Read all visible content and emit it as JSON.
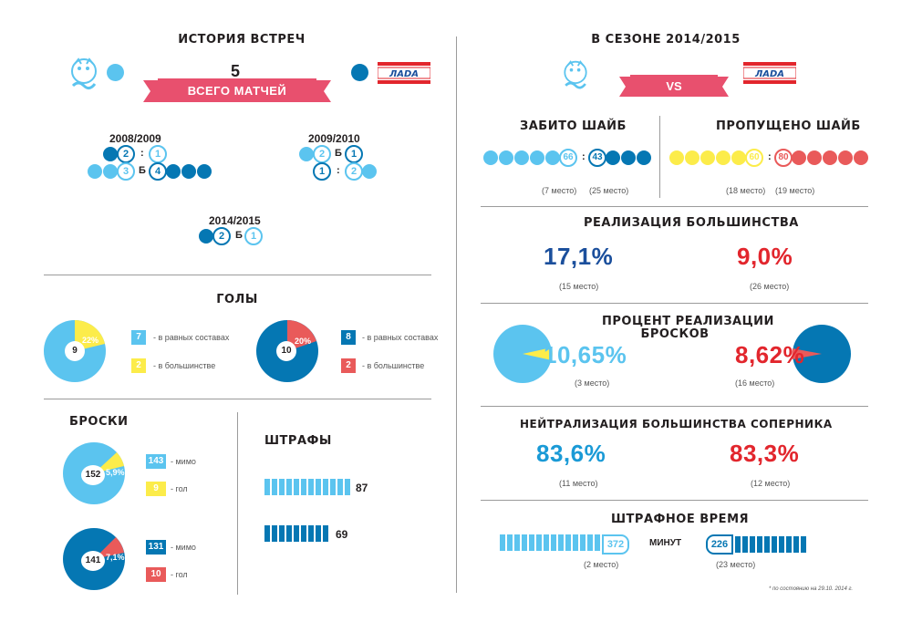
{
  "left": {
    "history_title": "ИСТОРИЯ ВСТРЕЧ",
    "total_games": "5",
    "total_games_label": "ВСЕГО МАТЧЕЙ",
    "seasons": [
      {
        "name": "2008/2009",
        "row1_left": "2",
        "row1_sep": ":",
        "row1_right": "1",
        "row2_left": "3",
        "row2_sep": "Б",
        "row2_right": "4"
      },
      {
        "name": "2009/2010",
        "row1_left": "2",
        "row1_sep": "Б",
        "row1_right": "1",
        "row2_left": "1",
        "row2_sep": ":",
        "row2_right": "2"
      },
      {
        "name": "2014/2015",
        "row1_left": "2",
        "row1_sep": "Б",
        "row1_right": "1"
      }
    ],
    "goals_title": "ГОЛЫ",
    "goals_pie1": {
      "center": "9",
      "pct": "22%"
    },
    "goals_pie1_legend": [
      {
        "value": "7",
        "text": "- в равных составах"
      },
      {
        "value": "2",
        "text": "- в большинстве"
      }
    ],
    "goals_pie2": {
      "center": "10",
      "pct": "20%"
    },
    "goals_pie2_legend": [
      {
        "value": "8",
        "text": "- в равных составах"
      },
      {
        "value": "2",
        "text": "- в большинстве"
      }
    ],
    "shots_title": "БРОСКИ",
    "shots_pie1": {
      "center": "152",
      "pct": "5,9%"
    },
    "shots_pie1_legend": [
      {
        "value": "143",
        "text": "- мимо"
      },
      {
        "value": "9",
        "text": "- гол"
      }
    ],
    "shots_pie2": {
      "center": "141",
      "pct": "7,1%"
    },
    "shots_pie2_legend": [
      {
        "value": "131",
        "text": "- мимо"
      },
      {
        "value": "10",
        "text": "- гол"
      }
    ],
    "penalties_title": "ШТРАФЫ",
    "penalties": [
      {
        "value": "87"
      },
      {
        "value": "69"
      }
    ]
  },
  "right": {
    "season_title": "В СЕЗОНЕ 2014/2015",
    "vs_label": "VS",
    "scored_title": "ЗАБИТО ШАЙБ",
    "scored_left": "66",
    "scored_sep": ":",
    "scored_right": "43",
    "scored_left_place": "(7 место)",
    "scored_right_place": "(25 место)",
    "conceded_title": "ПРОПУЩЕНО ШАЙБ",
    "conceded_left": "60",
    "conceded_sep": ":",
    "conceded_right": "80",
    "conceded_left_place": "(18 место)",
    "conceded_right_place": "(19 место)",
    "pp_title": "РЕАЛИЗАЦИЯ БОЛЬШИНСТВА",
    "pp_left": "17,1%",
    "pp_left_place": "(15 место)",
    "pp_right": "9,0%",
    "pp_right_place": "(26 место)",
    "shotpct_title_1": "ПРОЦЕНТ РЕАЛИЗАЦИИ",
    "shotpct_title_2": "БРОСКОВ",
    "shotpct_left": "10,65%",
    "shotpct_left_place": "(3 место)",
    "shotpct_right": "8,62%",
    "shotpct_right_place": "(16 место)",
    "pk_title": "НЕЙТРАЛИЗАЦИЯ БОЛЬШИНСТВА СОПЕРНИКА",
    "pk_left": "83,6%",
    "pk_left_place": "(11 место)",
    "pk_right": "83,3%",
    "pk_right_place": "(12 место)",
    "pim_title": "ШТРАФНОЕ ВРЕМЯ",
    "pim_left": "372",
    "pim_left_place": "(2 место)",
    "pim_unit": "МИНУТ",
    "pim_right": "226",
    "pim_right_place": "(23 место)",
    "footnote": "* по состоянию на 29.10. 2014 г."
  },
  "colors": {
    "light": "#5bc4ef",
    "dark": "#0577b3",
    "yellow": "#fcec4a",
    "red": "#e95a5a",
    "pink": "#e8506e",
    "navy": "#1b4f9c",
    "crimson": "#e2262d"
  }
}
